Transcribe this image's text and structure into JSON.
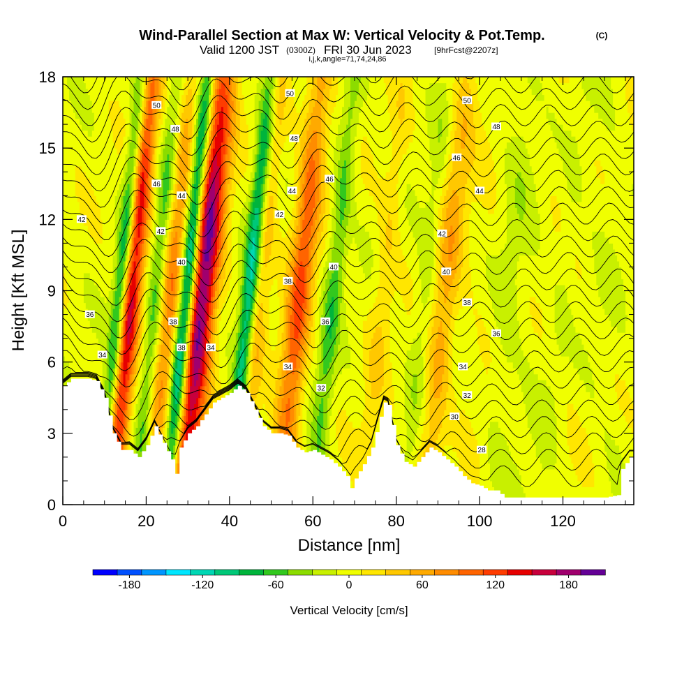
{
  "header": {
    "title": "Wind-Parallel Section at Max W: Vertical Velocity & Pot.Temp.",
    "title_mark": "(C)",
    "valid_prefix": "Valid 1200 JST",
    "valid_z": "(0300Z)",
    "valid_date": "FRI 30 Jun 2023",
    "valid_fcst": "[9hrFcst@2207z]",
    "ijk": "i,j,k,angle=71,74,24,86"
  },
  "colorbar": {
    "label": "Vertical Velocity [cm/s]",
    "tick_labels": [
      "-180",
      "-120",
      "-60",
      "0",
      "60",
      "120",
      "180"
    ],
    "tick_values": [
      -180,
      -120,
      -60,
      0,
      60,
      120,
      180
    ],
    "colors": [
      "#0000ff",
      "#0050ff",
      "#0096ff",
      "#00e6ff",
      "#00d7b4",
      "#00c878",
      "#00b43c",
      "#32c81e",
      "#8cdc00",
      "#c8f000",
      "#f0ff00",
      "#ffe600",
      "#ffc800",
      "#ffaa00",
      "#ff8c00",
      "#ff6400",
      "#ff3c00",
      "#e60000",
      "#c8003c",
      "#a0006e",
      "#640096"
    ]
  },
  "chart_data": {
    "type": "heatmap",
    "title": "Wind-Parallel Section at Max W: Vertical Velocity & Pot.Temp.",
    "xlabel": "Distance [nm]",
    "ylabel": "Height [Kft MSL]",
    "xlim": [
      0,
      137
    ],
    "ylim": [
      0,
      18
    ],
    "x_ticks": [
      0,
      20,
      40,
      60,
      80,
      100,
      120
    ],
    "x_tick_labels": [
      "0",
      "20",
      "40",
      "60",
      "80",
      "100",
      "120"
    ],
    "y_ticks": [
      0,
      3,
      6,
      9,
      12,
      15,
      18
    ],
    "y_tick_labels": [
      "0",
      "3",
      "6",
      "9",
      "12",
      "15",
      "18"
    ],
    "terrain": [
      [
        0,
        5.0
      ],
      [
        2,
        5.3
      ],
      [
        4,
        5.3
      ],
      [
        6,
        5.3
      ],
      [
        8,
        5.2
      ],
      [
        10,
        4.5
      ],
      [
        12,
        3.0
      ],
      [
        14,
        2.3
      ],
      [
        16,
        2.3
      ],
      [
        18,
        2.0
      ],
      [
        20,
        2.5
      ],
      [
        22,
        3.3
      ],
      [
        24,
        2.6
      ],
      [
        26,
        1.9
      ],
      [
        27,
        1.3
      ],
      [
        28,
        2.4
      ],
      [
        30,
        3.0
      ],
      [
        32,
        3.3
      ],
      [
        34,
        3.8
      ],
      [
        36,
        4.3
      ],
      [
        38,
        4.5
      ],
      [
        40,
        4.7
      ],
      [
        42,
        5.0
      ],
      [
        44,
        4.7
      ],
      [
        46,
        4.0
      ],
      [
        48,
        3.3
      ],
      [
        50,
        3.0
      ],
      [
        52,
        3.0
      ],
      [
        54,
        2.9
      ],
      [
        56,
        2.4
      ],
      [
        58,
        2.2
      ],
      [
        60,
        2.3
      ],
      [
        62,
        2.1
      ],
      [
        64,
        1.9
      ],
      [
        66,
        1.6
      ],
      [
        68,
        1.2
      ],
      [
        69,
        0.7
      ],
      [
        70,
        1.1
      ],
      [
        72,
        1.7
      ],
      [
        74,
        2.4
      ],
      [
        76,
        3.7
      ],
      [
        77,
        4.3
      ],
      [
        78,
        4.2
      ],
      [
        80,
        2.5
      ],
      [
        82,
        1.8
      ],
      [
        84,
        1.6
      ],
      [
        86,
        2.0
      ],
      [
        88,
        2.4
      ],
      [
        90,
        2.2
      ],
      [
        92,
        1.9
      ],
      [
        94,
        1.6
      ],
      [
        96,
        1.2
      ],
      [
        98,
        0.9
      ],
      [
        100,
        0.8
      ],
      [
        102,
        0.6
      ],
      [
        104,
        0.6
      ],
      [
        106,
        0.3
      ],
      [
        110,
        0.3
      ],
      [
        115,
        0.3
      ],
      [
        120,
        0.3
      ],
      [
        125,
        0.3
      ],
      [
        130,
        0.3
      ],
      [
        133,
        0.4
      ],
      [
        134,
        1.5
      ],
      [
        136,
        2.0
      ],
      [
        137,
        2.0
      ]
    ],
    "updrafts": [
      {
        "x_base": 11.5,
        "width": 2.5,
        "w": 160
      },
      {
        "x_base": 28.5,
        "width": 3.5,
        "w": 200
      },
      {
        "x_base": 21.0,
        "width": 2.5,
        "w": 80
      },
      {
        "x_base": 52.0,
        "width": 3.0,
        "w": 110
      },
      {
        "x_base": 42.0,
        "width": 2.5,
        "w": 60
      },
      {
        "x_base": 72.0,
        "width": 2.5,
        "w": 30
      },
      {
        "x_base": 87.0,
        "width": 3.0,
        "w": 60
      }
    ],
    "downdrafts": [
      {
        "x_base": 9.0,
        "width": 1.8,
        "w": -110
      },
      {
        "x_base": 25.0,
        "width": 2.0,
        "w": -170
      },
      {
        "x_base": 17.5,
        "width": 2.0,
        "w": -60
      },
      {
        "x_base": 40.0,
        "width": 2.0,
        "w": -130
      },
      {
        "x_base": 60.0,
        "width": 2.2,
        "w": -60
      },
      {
        "x_base": 82.0,
        "width": 2.2,
        "w": -25
      },
      {
        "x_base": 102.0,
        "width": 3.0,
        "w": -15
      },
      {
        "x_base": 115.0,
        "width": 3.0,
        "w": -15
      }
    ],
    "contour_labels": [
      {
        "text": "50",
        "x": 22.5,
        "y": 16.8
      },
      {
        "text": "48",
        "x": 27.0,
        "y": 15.8
      },
      {
        "text": "46",
        "x": 22.5,
        "y": 13.5
      },
      {
        "text": "44",
        "x": 28.5,
        "y": 13.0
      },
      {
        "text": "42",
        "x": 4.5,
        "y": 12.0
      },
      {
        "text": "42",
        "x": 23.5,
        "y": 11.5
      },
      {
        "text": "40",
        "x": 28.5,
        "y": 10.2
      },
      {
        "text": "38",
        "x": 26.5,
        "y": 7.7
      },
      {
        "text": "38",
        "x": 28.5,
        "y": 6.6
      },
      {
        "text": "36",
        "x": 6.5,
        "y": 8.0
      },
      {
        "text": "34",
        "x": 9.5,
        "y": 6.3
      },
      {
        "text": "34",
        "x": 35.5,
        "y": 6.6
      },
      {
        "text": "50",
        "x": 54.5,
        "y": 17.3
      },
      {
        "text": "48",
        "x": 55.5,
        "y": 15.4
      },
      {
        "text": "46",
        "x": 64.0,
        "y": 13.7
      },
      {
        "text": "44",
        "x": 55.0,
        "y": 13.2
      },
      {
        "text": "42",
        "x": 52.0,
        "y": 12.2
      },
      {
        "text": "40",
        "x": 65.0,
        "y": 10.0
      },
      {
        "text": "38",
        "x": 54.0,
        "y": 9.4
      },
      {
        "text": "36",
        "x": 63.0,
        "y": 7.7
      },
      {
        "text": "34",
        "x": 54.0,
        "y": 5.8
      },
      {
        "text": "32",
        "x": 62.0,
        "y": 4.9
      },
      {
        "text": "50",
        "x": 97.0,
        "y": 17.0
      },
      {
        "text": "48",
        "x": 104.0,
        "y": 15.9
      },
      {
        "text": "46",
        "x": 94.5,
        "y": 14.6
      },
      {
        "text": "44",
        "x": 100.0,
        "y": 13.2
      },
      {
        "text": "42",
        "x": 91.0,
        "y": 11.4
      },
      {
        "text": "40",
        "x": 92.0,
        "y": 9.8
      },
      {
        "text": "38",
        "x": 97.0,
        "y": 8.5
      },
      {
        "text": "36",
        "x": 104.0,
        "y": 7.2
      },
      {
        "text": "34",
        "x": 96.0,
        "y": 5.8
      },
      {
        "text": "32",
        "x": 97.0,
        "y": 4.6
      },
      {
        "text": "30",
        "x": 94.0,
        "y": 3.7
      },
      {
        "text": "28",
        "x": 100.5,
        "y": 2.3
      }
    ],
    "theta_levels": [
      28,
      29,
      30,
      31,
      32,
      33,
      34,
      35,
      36,
      37,
      38,
      39,
      40,
      41,
      42,
      43,
      44,
      45,
      46,
      47,
      48,
      49,
      50,
      51,
      52,
      53
    ]
  }
}
